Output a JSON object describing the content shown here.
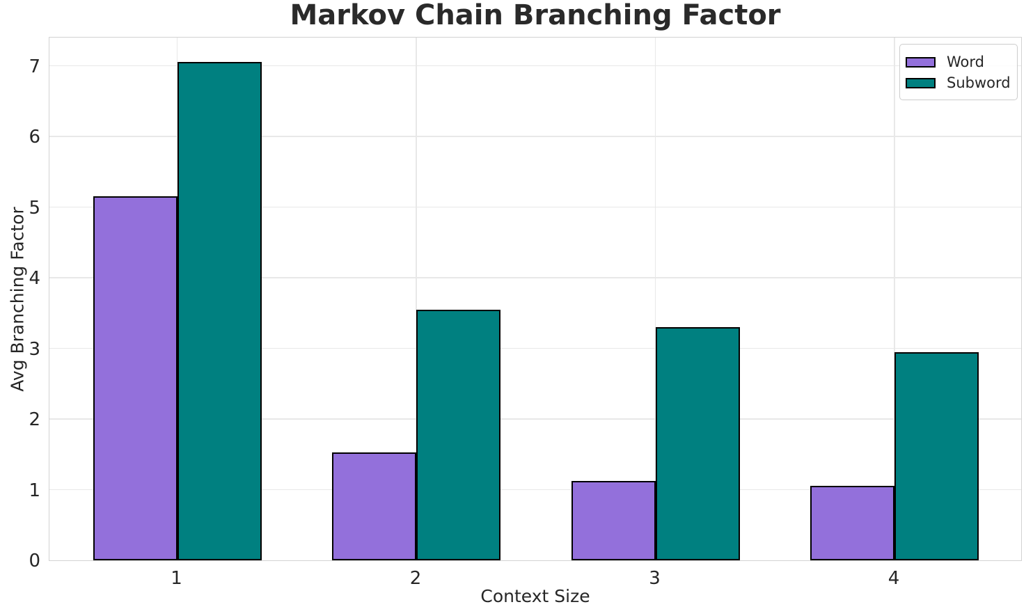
{
  "title": "Markov Chain Branching Factor",
  "chart_data": {
    "type": "bar",
    "title": "Markov Chain Branching Factor",
    "categories": [
      "1",
      "2",
      "3",
      "4"
    ],
    "series": [
      {
        "name": "Word",
        "color": "#9370DB",
        "values": [
          5.15,
          1.53,
          1.12,
          1.05
        ]
      },
      {
        "name": "Subword",
        "color": "#008080",
        "values": [
          7.06,
          3.55,
          3.3,
          2.95
        ]
      }
    ],
    "xlabel": "Context Size",
    "ylabel": "Avg Branching Factor",
    "ylim": [
      0,
      7.42
    ],
    "yticks": [
      0,
      1,
      2,
      3,
      4,
      5,
      6,
      7
    ],
    "grid": "both",
    "legend_position": "upper right",
    "bar_edge_color": "#000000",
    "grid_color": "#e8e8e8",
    "spine_color": "#d2d2d2",
    "text_color": "#262626"
  }
}
